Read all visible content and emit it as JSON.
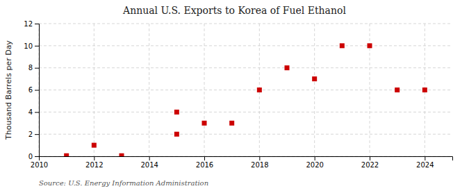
{
  "chart_data": {
    "type": "scatter",
    "title": "Annual U.S. Exports to Korea of Fuel Ethanol",
    "ylabel": "Thousand Barrels per Day",
    "source": "Source: U.S. Energy Information Administration",
    "x": [
      2011,
      2012,
      2013,
      2015,
      2015,
      2016,
      2017,
      2018,
      2019,
      2020,
      2021,
      2022,
      2023,
      2024
    ],
    "values": [
      0.05,
      1.0,
      0.05,
      2.0,
      4.0,
      3.0,
      3.0,
      6.0,
      8.0,
      7.0,
      10.0,
      10.0,
      6.0,
      6.0
    ],
    "color": "#cc0000",
    "marker": "square",
    "xlim": [
      2010,
      2025
    ],
    "ylim": [
      0,
      12
    ],
    "xticks": [
      2010,
      2012,
      2014,
      2016,
      2018,
      2020,
      2022,
      2024
    ],
    "yticks": [
      0,
      2,
      4,
      6,
      8,
      10,
      12
    ],
    "grid": true
  }
}
